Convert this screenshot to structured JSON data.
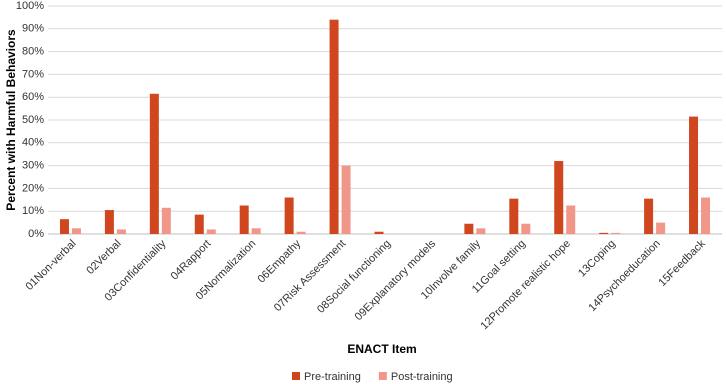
{
  "chart_data": {
    "type": "bar",
    "categories": [
      "01Non-verbal",
      "02Verbal",
      "03Confidentiality",
      "04Rapport",
      "05Normalization",
      "06Empathy",
      "07Risk Assessment",
      "08Social functioning",
      "09Explanatory models",
      "10Involve family",
      "11Goal setting",
      "12Promote realistic hope",
      "13Coping",
      "14Psychoeducation",
      "15Feedback"
    ],
    "series": [
      {
        "name": "Pre-training",
        "color": "#d0461e",
        "values": [
          6.5,
          10.5,
          61.5,
          8.5,
          12.5,
          16,
          94,
          1,
          0,
          4.5,
          15.5,
          32,
          0.5,
          15.5,
          51.5
        ]
      },
      {
        "name": "Post-training",
        "color": "#f0978a",
        "values": [
          2.5,
          2,
          11.5,
          2,
          2.5,
          1,
          30,
          0,
          0,
          2.5,
          4.5,
          12.5,
          0.5,
          5,
          16
        ]
      }
    ],
    "x_label": "ENACT Item",
    "y_label": "Percent with Harmful Behaviors",
    "ylim": [
      0,
      100
    ],
    "yticks": [
      {
        "value": 0,
        "label": "0%"
      },
      {
        "value": 10,
        "label": "10%"
      },
      {
        "value": 20,
        "label": "20%"
      },
      {
        "value": 30,
        "label": "30%"
      },
      {
        "value": 40,
        "label": "40%"
      },
      {
        "value": 50,
        "label": "50%"
      },
      {
        "value": 60,
        "label": "60%"
      },
      {
        "value": 70,
        "label": "70%"
      },
      {
        "value": 80,
        "label": "80%"
      },
      {
        "value": 90,
        "label": "90%"
      },
      {
        "value": 100,
        "label": "100%"
      }
    ],
    "grid": true,
    "legend": "bottom"
  }
}
